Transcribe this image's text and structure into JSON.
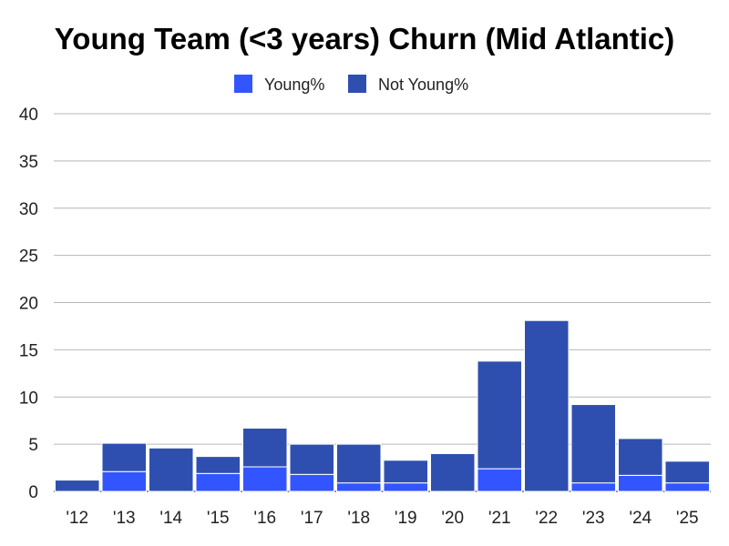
{
  "chart_data": {
    "type": "bar",
    "stacked": true,
    "title": "Young Team (<3 years) Churn (Mid Atlantic)",
    "xlabel": "",
    "ylabel": "",
    "ylim": [
      0,
      40
    ],
    "yticks": [
      0,
      5,
      10,
      15,
      20,
      25,
      30,
      35,
      40
    ],
    "grid": true,
    "legend_position": "top",
    "categories": [
      "'12",
      "'13",
      "'14",
      "'15",
      "'16",
      "'17",
      "'18",
      "'19",
      "'20",
      "'21",
      "'22",
      "'23",
      "'24",
      "'25"
    ],
    "series": [
      {
        "name": "Young%",
        "color": "#3355ff",
        "values": [
          0,
          2.1,
          0,
          1.9,
          2.6,
          1.8,
          0.9,
          0.9,
          0,
          2.4,
          0,
          0.9,
          1.7,
          0.9
        ]
      },
      {
        "name": "Not Young%",
        "color": "#2f4fb0",
        "values": [
          1.2,
          3.0,
          4.6,
          1.8,
          4.1,
          3.2,
          4.1,
          2.4,
          4.0,
          11.4,
          18.1,
          8.3,
          3.9,
          2.3
        ]
      }
    ]
  }
}
